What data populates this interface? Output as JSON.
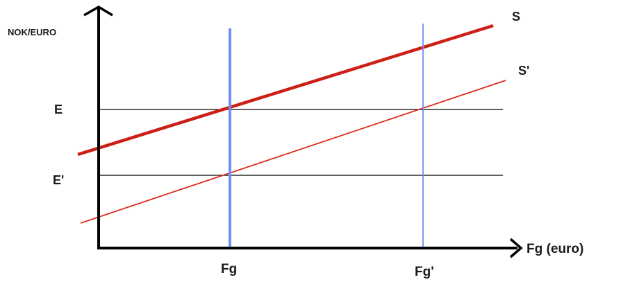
{
  "diagram": {
    "y_axis_label": "NOK/EURO",
    "x_axis_label": "Fg (euro)",
    "levels": {
      "e": "E",
      "e_prime": "E'"
    },
    "quantities": {
      "fg": "Fg",
      "fg_prime": "Fg'"
    },
    "curves": {
      "s": "S",
      "s_prime": "S'"
    },
    "colors": {
      "axis": "#000000",
      "supply_s": "#cc1f16",
      "supply_s_prime": "#e0261c",
      "demand_lines": "#6f8ff5",
      "level_lines": "#000000"
    }
  }
}
